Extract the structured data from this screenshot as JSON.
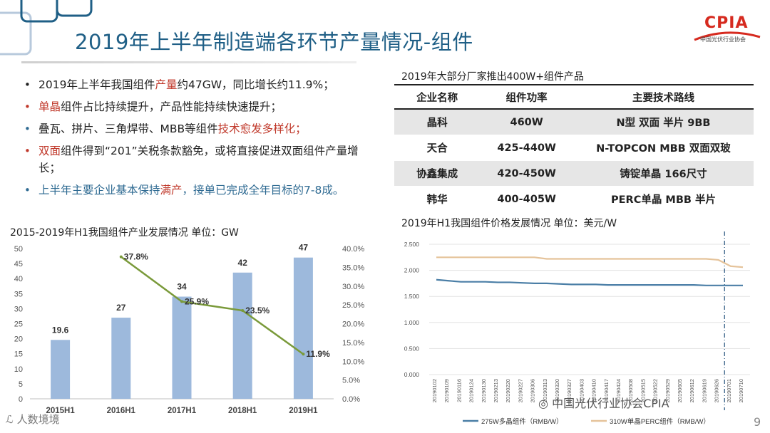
{
  "slide": {
    "title": "2019年上半年制造端各环节产量情况-组件",
    "logo_text": "CPIA",
    "logo_subtitle": "中国光伏行业协会",
    "page_number": "9",
    "watermark_left": "人数境境",
    "watermark_right": "中国光伏行业协会CPIA"
  },
  "bullets": [
    {
      "dot": "black",
      "parts": [
        {
          "t": "2019年上半年我国组件"
        },
        {
          "t": "产量",
          "c": "red"
        },
        {
          "t": "约47GW，同比增长约11.9%；"
        }
      ]
    },
    {
      "dot": "red",
      "parts": [
        {
          "t": "单晶",
          "c": "red"
        },
        {
          "t": "组件占比持续提升，产品性能持续快速提升；"
        }
      ]
    },
    {
      "dot": "blue",
      "parts": [
        {
          "t": "叠瓦、拼片、三角焊带、MBB等组件"
        },
        {
          "t": "技术愈发多样化；",
          "c": "red"
        }
      ]
    },
    {
      "dot": "red",
      "parts": [
        {
          "t": "双面",
          "c": "red"
        },
        {
          "t": "组件得到“201”关税条款豁免，或将直接促进双面组件产量增长；"
        }
      ]
    },
    {
      "dot": "blue",
      "parts": [
        {
          "t": "上半年主要企业基本保持",
          "c": "blue"
        },
        {
          "t": "满产",
          "c": "red"
        },
        {
          "t": "，接单已完成全年目标的7-8成。",
          "c": "blue"
        }
      ]
    }
  ],
  "table": {
    "title": "2019年大部分厂家推出400W+组件产品",
    "headers": [
      "企业名称",
      "组件功率",
      "主要技术路线"
    ],
    "rows": [
      [
        "晶科",
        "460W",
        "N型 双面 半片 9BB"
      ],
      [
        "天合",
        "425-440W",
        "N-TOPCON MBB 双面双玻"
      ],
      [
        "协鑫集成",
        "420-450W",
        "铸锭单晶 166尺寸"
      ],
      [
        "韩华",
        "400-405W",
        "PERC单晶 MBB 半片"
      ]
    ]
  },
  "chart_data": [
    {
      "type": "bar",
      "title": "2015-2019年H1我国组件产业发展情况 单位：GW",
      "categories": [
        "2015H1",
        "2016H1",
        "2017H1",
        "2018H1",
        "2019H1"
      ],
      "series": [
        {
          "type": "bar",
          "values": [
            19.6,
            27,
            34,
            42,
            47
          ],
          "labels": [
            "19.6",
            "27",
            "34",
            "42",
            "47"
          ],
          "color": "#9db9dc"
        },
        {
          "type": "line",
          "axis": "right",
          "values": [
            null,
            37.8,
            25.9,
            23.5,
            11.9
          ],
          "labels": [
            "",
            "37.8%",
            "25.9%",
            "23.5%",
            "11.9%"
          ],
          "color": "#7a9a3a"
        }
      ],
      "ylim": [
        0,
        50
      ],
      "yticks": [
        "0",
        "5",
        "10",
        "15",
        "20",
        "25",
        "30",
        "35",
        "40",
        "45",
        "50"
      ],
      "y2lim": [
        0,
        40
      ],
      "y2ticks": [
        "0.0%",
        "5.0%",
        "10.0%",
        "15.0%",
        "20.0%",
        "25.0%",
        "30.0%",
        "35.0%",
        "40.0%"
      ],
      "grid": false
    },
    {
      "type": "line",
      "title": "2019年H1我国组件价格发展情况 单位：美元/W",
      "x": [
        "20190102",
        "20190109",
        "20190116",
        "20190124",
        "20190130",
        "20190213",
        "20190220",
        "20190227",
        "20190306",
        "20190313",
        "20190320",
        "20190327",
        "20190403",
        "20190410",
        "20190417",
        "20190424",
        "20190508",
        "20190515",
        "20190522",
        "20190529",
        "20190605",
        "20190612",
        "20190619",
        "20190626",
        "20190701",
        "20190710"
      ],
      "series": [
        {
          "name": "275W多晶组件（RMB/W）",
          "color": "#4a7ea6",
          "values": [
            1.82,
            1.8,
            1.78,
            1.78,
            1.78,
            1.77,
            1.77,
            1.76,
            1.75,
            1.75,
            1.74,
            1.73,
            1.73,
            1.73,
            1.72,
            1.72,
            1.72,
            1.72,
            1.72,
            1.72,
            1.72,
            1.72,
            1.71,
            1.71,
            1.71,
            1.71
          ]
        },
        {
          "name": "310W单晶PERC组件（RMB/W）",
          "color": "#e5c39a",
          "values": [
            2.25,
            2.25,
            2.25,
            2.25,
            2.25,
            2.25,
            2.25,
            2.25,
            2.25,
            2.22,
            2.22,
            2.22,
            2.22,
            2.22,
            2.22,
            2.22,
            2.22,
            2.22,
            2.22,
            2.22,
            2.22,
            2.22,
            2.22,
            2.2,
            2.08,
            2.06
          ]
        }
      ],
      "ylim": [
        0,
        2.5
      ],
      "yticks": [
        "0.000",
        "0.500",
        "1.000",
        "1.500",
        "2.000",
        "2.500"
      ],
      "grid": true
    }
  ]
}
